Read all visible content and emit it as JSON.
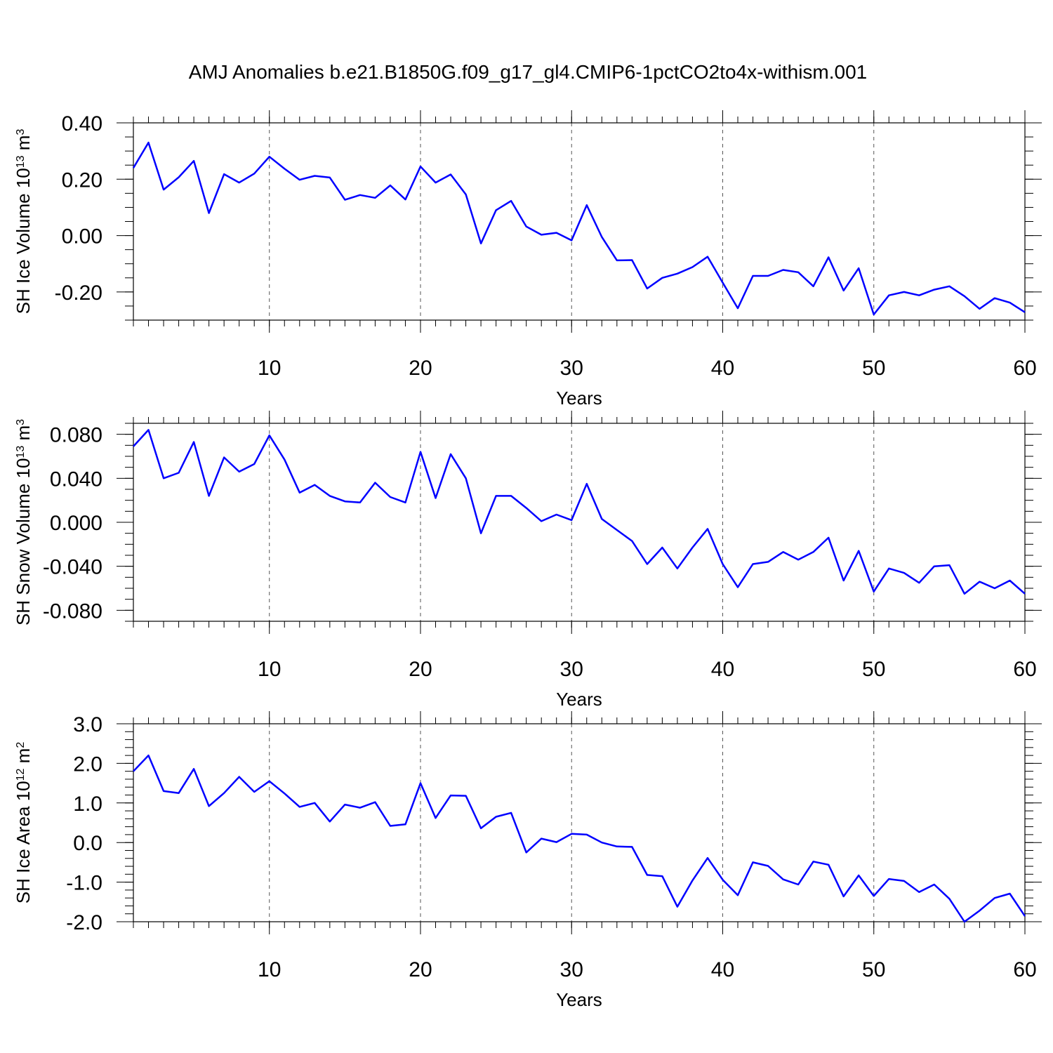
{
  "figure": {
    "title": "AMJ Anomalies b.e21.B1850G.f09_g17_gl4.CMIP6-1pctCO2to4x-withism.001"
  },
  "colors": {
    "line": "#0000ff",
    "axis": "#000000",
    "grid": "#555555"
  },
  "chart_data": [
    {
      "type": "line",
      "id": "ice-volume",
      "title": "",
      "xlabel": "Years",
      "ylabel": "SH Ice Volume 10",
      "ylabel_exp": "13",
      "ylabel_unit": "m",
      "ylabel_unit_exp": "3",
      "xlim": [
        1,
        60
      ],
      "ylim": [
        -0.3,
        0.4
      ],
      "xticks": [
        10,
        20,
        30,
        40,
        50,
        60
      ],
      "xtick_labels": [
        "10",
        "20",
        "30",
        "40",
        "50",
        "60"
      ],
      "yticks": [
        -0.2,
        0.0,
        0.2,
        0.4
      ],
      "ytick_labels": [
        "-0.20",
        "0.00",
        "0.20",
        "0.40"
      ],
      "y_minor_step": 0.05,
      "grid_x": [
        10,
        20,
        30,
        40,
        50
      ],
      "x": [
        1,
        2,
        3,
        4,
        5,
        6,
        7,
        8,
        9,
        10,
        11,
        12,
        13,
        14,
        15,
        16,
        17,
        18,
        19,
        20,
        21,
        22,
        23,
        24,
        25,
        26,
        27,
        28,
        29,
        30,
        31,
        32,
        33,
        34,
        35,
        36,
        37,
        38,
        39,
        40,
        41,
        42,
        43,
        44,
        45,
        46,
        47,
        48,
        49,
        50,
        51,
        52,
        53,
        54,
        55,
        56,
        57,
        58,
        59,
        60
      ],
      "y": [
        0.24,
        0.33,
        0.163,
        0.207,
        0.265,
        0.08,
        0.218,
        0.188,
        0.22,
        0.28,
        0.237,
        0.198,
        0.212,
        0.206,
        0.127,
        0.144,
        0.134,
        0.178,
        0.128,
        0.245,
        0.188,
        0.217,
        0.146,
        -0.028,
        0.09,
        0.123,
        0.032,
        0.003,
        0.01,
        -0.017,
        0.108,
        -0.005,
        -0.088,
        -0.087,
        -0.188,
        -0.15,
        -0.135,
        -0.112,
        -0.075,
        -0.167,
        -0.258,
        -0.143,
        -0.143,
        -0.122,
        -0.13,
        -0.18,
        -0.077,
        -0.195,
        -0.116,
        -0.28,
        -0.212,
        -0.2,
        -0.212,
        -0.192,
        -0.18,
        -0.215,
        -0.26,
        -0.222,
        -0.238,
        -0.272
      ]
    },
    {
      "type": "line",
      "id": "snow-volume",
      "title": "",
      "xlabel": "Years",
      "ylabel": "SH Snow Volume 10",
      "ylabel_exp": "13",
      "ylabel_unit": "m",
      "ylabel_unit_exp": "3",
      "xlim": [
        1,
        60
      ],
      "ylim": [
        -0.09,
        0.09
      ],
      "xticks": [
        10,
        20,
        30,
        40,
        50,
        60
      ],
      "xtick_labels": [
        "10",
        "20",
        "30",
        "40",
        "50",
        "60"
      ],
      "yticks": [
        -0.08,
        -0.04,
        0.0,
        0.04,
        0.08
      ],
      "ytick_labels": [
        "-0.080",
        "-0.040",
        "0.000",
        "0.040",
        "0.080"
      ],
      "y_minor_step": 0.01,
      "grid_x": [
        10,
        20,
        30,
        40,
        50
      ],
      "x": [
        1,
        2,
        3,
        4,
        5,
        6,
        7,
        8,
        9,
        10,
        11,
        12,
        13,
        14,
        15,
        16,
        17,
        18,
        19,
        20,
        21,
        22,
        23,
        24,
        25,
        26,
        27,
        28,
        29,
        30,
        31,
        32,
        33,
        34,
        35,
        36,
        37,
        38,
        39,
        40,
        41,
        42,
        43,
        44,
        45,
        46,
        47,
        48,
        49,
        50,
        51,
        52,
        53,
        54,
        55,
        56,
        57,
        58,
        59,
        60
      ],
      "y": [
        0.069,
        0.084,
        0.04,
        0.045,
        0.073,
        0.024,
        0.059,
        0.046,
        0.053,
        0.079,
        0.057,
        0.027,
        0.034,
        0.024,
        0.019,
        0.018,
        0.036,
        0.023,
        0.018,
        0.064,
        0.022,
        0.062,
        0.04,
        -0.01,
        0.024,
        0.024,
        0.013,
        0.001,
        0.007,
        0.002,
        0.035,
        0.003,
        -0.007,
        -0.017,
        -0.038,
        -0.023,
        -0.042,
        -0.023,
        -0.006,
        -0.038,
        -0.059,
        -0.038,
        -0.036,
        -0.027,
        -0.034,
        -0.027,
        -0.014,
        -0.053,
        -0.026,
        -0.063,
        -0.042,
        -0.046,
        -0.055,
        -0.04,
        -0.039,
        -0.065,
        -0.054,
        -0.06,
        -0.053,
        -0.065
      ]
    },
    {
      "type": "line",
      "id": "ice-area",
      "title": "",
      "xlabel": "Years",
      "ylabel": "SH Ice Area 10",
      "ylabel_exp": "12",
      "ylabel_unit": "m",
      "ylabel_unit_exp": "2",
      "xlim": [
        1,
        60
      ],
      "ylim": [
        -2.0,
        3.0
      ],
      "xticks": [
        10,
        20,
        30,
        40,
        50,
        60
      ],
      "xtick_labels": [
        "10",
        "20",
        "30",
        "40",
        "50",
        "60"
      ],
      "yticks": [
        -2.0,
        -1.0,
        0.0,
        1.0,
        2.0,
        3.0
      ],
      "ytick_labels": [
        "-2.0",
        "-1.0",
        "0.0",
        "1.0",
        "2.0",
        "3.0"
      ],
      "y_minor_step": 0.2,
      "grid_x": [
        10,
        20,
        30,
        40,
        50
      ],
      "x": [
        1,
        2,
        3,
        4,
        5,
        6,
        7,
        8,
        9,
        10,
        11,
        12,
        13,
        14,
        15,
        16,
        17,
        18,
        19,
        20,
        21,
        22,
        23,
        24,
        25,
        26,
        27,
        28,
        29,
        30,
        31,
        32,
        33,
        34,
        35,
        36,
        37,
        38,
        39,
        40,
        41,
        42,
        43,
        44,
        45,
        46,
        47,
        48,
        49,
        50,
        51,
        52,
        53,
        54,
        55,
        56,
        57,
        58,
        59,
        60
      ],
      "y": [
        1.8,
        2.2,
        1.3,
        1.25,
        1.86,
        0.92,
        1.25,
        1.66,
        1.28,
        1.55,
        1.24,
        0.9,
        1.0,
        0.53,
        0.96,
        0.88,
        1.02,
        0.42,
        0.46,
        1.5,
        0.62,
        1.19,
        1.18,
        0.36,
        0.65,
        0.75,
        -0.25,
        0.1,
        0.01,
        0.22,
        0.2,
        0.0,
        -0.1,
        -0.11,
        -0.82,
        -0.85,
        -1.62,
        -0.96,
        -0.39,
        -0.94,
        -1.33,
        -0.5,
        -0.59,
        -0.93,
        -1.06,
        -0.48,
        -0.56,
        -1.36,
        -0.83,
        -1.35,
        -0.92,
        -0.97,
        -1.25,
        -1.06,
        -1.42,
        -2.0,
        -1.72,
        -1.4,
        -1.29,
        -1.86
      ]
    }
  ]
}
